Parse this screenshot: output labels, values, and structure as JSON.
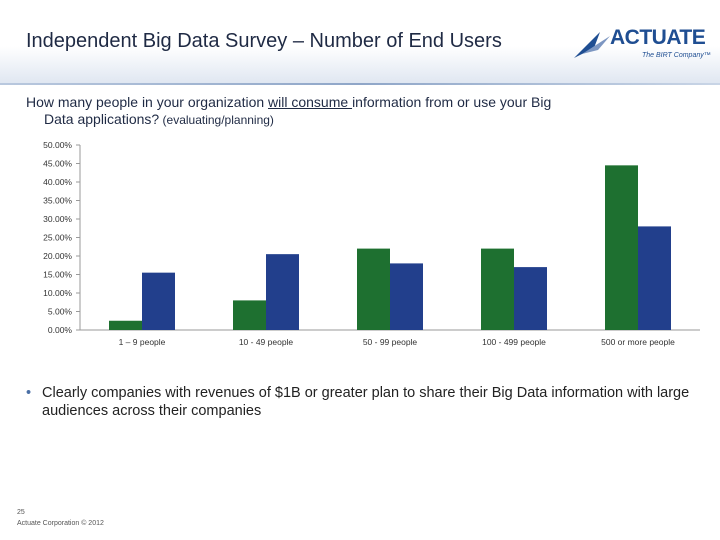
{
  "slide": {
    "title": "Independent Big Data Survey – Number of End Users",
    "question_pre": "How many people in your organization ",
    "question_underlined": "will consume ",
    "question_post": "information from or use your Big",
    "question_line2": "Data applications?",
    "question_note": " (evaluating/planning)",
    "bullet": "Clearly companies with revenues of $1B or greater plan to share their Big Data information with large audiences across their companies",
    "page_number": "25",
    "footer": "Actuate Corporation © 2012"
  },
  "logo": {
    "word": "ACTUATE",
    "tagline": "The BIRT Company™"
  },
  "chart_data": {
    "type": "bar",
    "categories": [
      "1 – 9 people",
      "10 - 49 people",
      "50 - 99 people",
      "100 - 499 people",
      "500 or more people"
    ],
    "series": [
      {
        "color": "#1e7030",
        "values": [
          2.5,
          8.0,
          22.0,
          22.0,
          44.5
        ]
      },
      {
        "color": "#223f8c",
        "values": [
          15.5,
          20.5,
          18.0,
          17.0,
          28.0
        ]
      }
    ],
    "y_ticks": [
      "0.00%",
      "5.00%",
      "10.00%",
      "15.00%",
      "20.00%",
      "25.00%",
      "30.00%",
      "35.00%",
      "40.00%",
      "45.00%",
      "50.00%"
    ],
    "ylim": [
      0,
      50
    ],
    "grid": false,
    "legend": "none"
  }
}
